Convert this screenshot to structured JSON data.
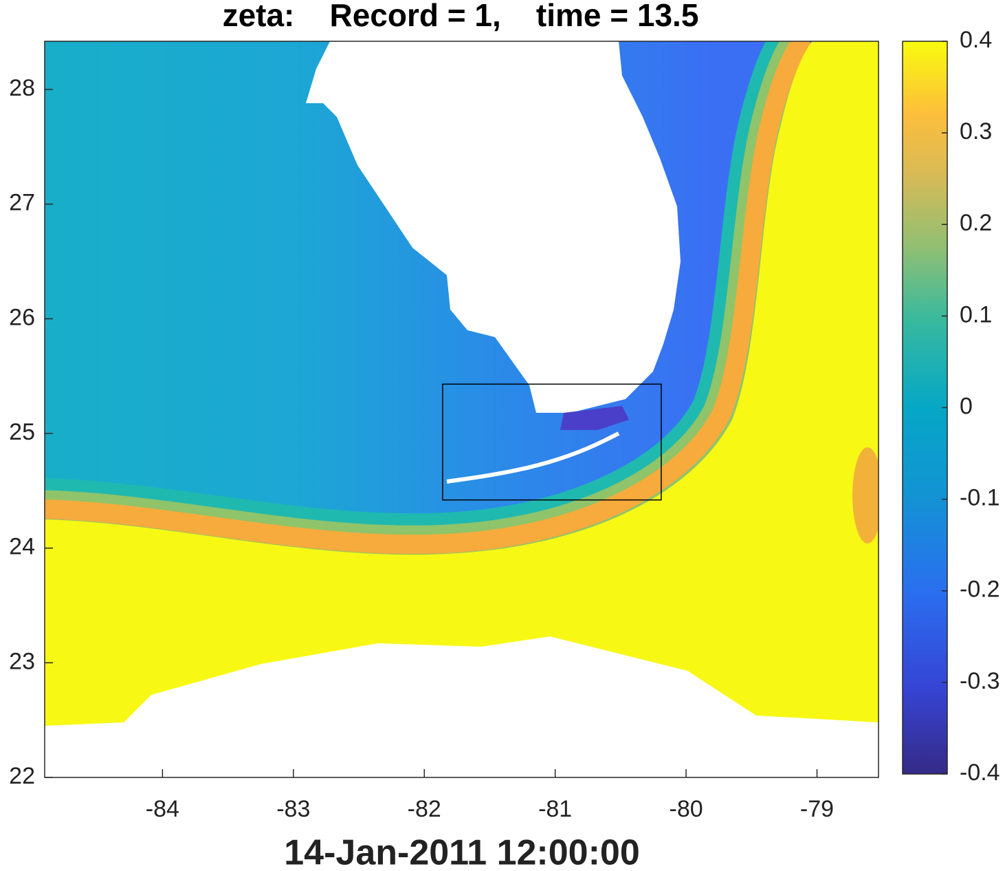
{
  "chart_data": {
    "type": "map",
    "title": "zeta:    Record = 1,    time = 13.5",
    "xlabel": "14-Jan-2011 12:00:00",
    "xlim": [
      -84.9,
      -78.53
    ],
    "ylim": [
      22,
      28.42
    ],
    "xticks": [
      -84,
      -83,
      -82,
      -81,
      -80,
      -79
    ],
    "yticks": [
      22,
      23,
      24,
      25,
      26,
      27,
      28
    ],
    "colorbar": {
      "lim": [
        -0.4,
        0.4
      ],
      "ticks": [
        0.4,
        0.3,
        0.2,
        0.1,
        0,
        -0.1,
        -0.2,
        -0.3,
        -0.4
      ]
    },
    "box": {
      "lon": [
        -81.86,
        -80.19
      ],
      "lat": [
        24.42,
        25.43
      ]
    }
  }
}
